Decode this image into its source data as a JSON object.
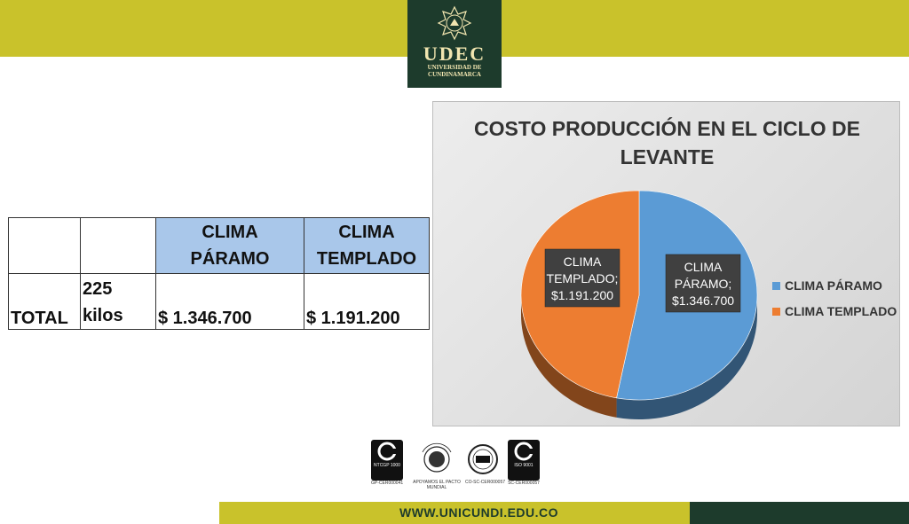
{
  "header": {
    "logo_text": "UDEC",
    "logo_sub1": "UNIVERSIDAD DE",
    "logo_sub2": "CUNDINAMARCA",
    "logo_icon": "udec-shield-icon"
  },
  "table": {
    "header": [
      "",
      "",
      "CLIMA PÁRAMO",
      "CLIMA TEMPLADO"
    ],
    "row": {
      "label": "TOTAL",
      "quantity": "225 kilos",
      "paramo": "$ 1.346.700",
      "templado": "$ 1.191.200"
    }
  },
  "chart_data": {
    "type": "pie",
    "title": "COSTO PRODUCCIÓN  EN EL CICLO DE LEVANTE",
    "title_lines": [
      "COSTO PRODUCCIÓN  EN EL CICLO DE",
      "LEVANTE"
    ],
    "categories": [
      "CLIMA PÁRAMO",
      "CLIMA TEMPLADO"
    ],
    "values": [
      1346700,
      1191200
    ],
    "data_labels": [
      [
        "CLIMA",
        "PÁRAMO;",
        "$1.346.700"
      ],
      [
        "CLIMA",
        "TEMPLADO;",
        "$1.191.200"
      ]
    ],
    "colors": [
      "#5b9bd5",
      "#ed7d31"
    ],
    "legend": {
      "placement": "right",
      "entries": [
        "CLIMA PÁRAMO",
        "CLIMA TEMPLADO"
      ]
    },
    "style": "3d"
  },
  "footer": {
    "url": "WWW.UNICUNDI.EDU.CO",
    "certs": [
      {
        "icon": "icontec-ntcgp-icon",
        "code": "NTCGP 1000",
        "caption": "GP-CER000041"
      },
      {
        "icon": "global-compact-icon",
        "caption": "APOYAMOS EL PACTO MUNDIAL"
      },
      {
        "icon": "iqnet-icon",
        "caption": "CO-SC-CER000057"
      },
      {
        "icon": "icontec-iso-icon",
        "code": "ISO 9001",
        "caption": "SC-CER000057"
      }
    ]
  }
}
